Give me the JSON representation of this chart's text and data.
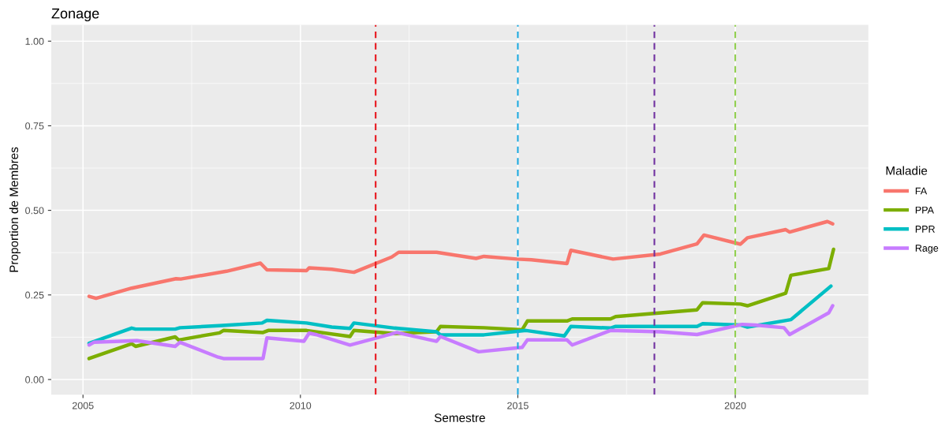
{
  "chart_data": {
    "type": "line",
    "title": "Zonage",
    "xlabel": "Semestre",
    "ylabel": "Proportion de Membres",
    "legend_title": "Maladie",
    "legend": "right",
    "grid": true,
    "line_style": "solid",
    "marker": "none",
    "xlim": [
      2004.27,
      2023.06
    ],
    "xticks": [
      2005,
      2010,
      2015,
      2020
    ],
    "ylim": [
      -0.045,
      1.048
    ],
    "yticks": [
      {
        "value": 0,
        "label": "0.00"
      },
      {
        "value": 0.25,
        "label": "0.25"
      },
      {
        "value": 0.5,
        "label": "0.50"
      },
      {
        "value": 0.75,
        "label": "0.75"
      },
      {
        "value": 1,
        "label": "1.00"
      }
    ],
    "series": [
      {
        "name": "FA",
        "color": "#f8766d",
        "x": [
          2005.14,
          2005.3,
          2006.12,
          2007.14,
          2007.25,
          2008.3,
          2009.08,
          2009.23,
          2010.14,
          2010.2,
          2010.72,
          2011.23,
          2012.1,
          2012.26,
          2013.13,
          2014.04,
          2014.22,
          2014.98,
          2015.31,
          2016.13,
          2016.22,
          2017.19,
          2018.28,
          2019.12,
          2019.28,
          2020.12,
          2020.28,
          2021.16,
          2021.25,
          2022.12,
          2022.24
        ],
        "values": [
          0.246,
          0.24,
          0.27,
          0.298,
          0.297,
          0.32,
          0.344,
          0.324,
          0.322,
          0.33,
          0.326,
          0.317,
          0.362,
          0.376,
          0.376,
          0.358,
          0.364,
          0.356,
          0.354,
          0.343,
          0.382,
          0.356,
          0.371,
          0.401,
          0.427,
          0.4,
          0.419,
          0.443,
          0.436,
          0.467,
          0.46
        ]
      },
      {
        "name": "PPA",
        "color": "#7cae00",
        "x": [
          2005.14,
          2006.12,
          2006.21,
          2007.12,
          2007.2,
          2008.14,
          2008.23,
          2009.14,
          2009.26,
          2010.14,
          2011.14,
          2011.23,
          2012.17,
          2013.13,
          2013.22,
          2014.22,
          2015.1,
          2015.22,
          2016.13,
          2016.25,
          2017.13,
          2017.25,
          2019.12,
          2019.25,
          2020.12,
          2020.28,
          2021.16,
          2021.28,
          2022.15,
          2022.26
        ],
        "values": [
          0.062,
          0.106,
          0.098,
          0.126,
          0.117,
          0.138,
          0.145,
          0.139,
          0.145,
          0.145,
          0.127,
          0.145,
          0.136,
          0.141,
          0.157,
          0.153,
          0.147,
          0.173,
          0.173,
          0.179,
          0.179,
          0.186,
          0.206,
          0.227,
          0.223,
          0.218,
          0.255,
          0.308,
          0.328,
          0.385
        ]
      },
      {
        "name": "PPR",
        "color": "#00bfc4",
        "x": [
          2005.14,
          2006.12,
          2006.21,
          2007.12,
          2007.23,
          2008.14,
          2009.12,
          2009.23,
          2010.14,
          2010.72,
          2011.14,
          2011.23,
          2012.17,
          2013.13,
          2013.22,
          2014.22,
          2015.19,
          2016.07,
          2016.22,
          2017.13,
          2017.25,
          2019.12,
          2019.25,
          2020.12,
          2020.28,
          2021.28,
          2022.2
        ],
        "values": [
          0.107,
          0.152,
          0.149,
          0.149,
          0.153,
          0.159,
          0.167,
          0.175,
          0.167,
          0.155,
          0.151,
          0.167,
          0.152,
          0.141,
          0.132,
          0.132,
          0.145,
          0.129,
          0.157,
          0.152,
          0.157,
          0.157,
          0.165,
          0.161,
          0.155,
          0.177,
          0.276
        ]
      },
      {
        "name": "Rage",
        "color": "#c77cff",
        "x": [
          2005.14,
          2005.25,
          2006.24,
          2007.12,
          2007.23,
          2008.11,
          2008.23,
          2009.14,
          2009.23,
          2010.08,
          2010.2,
          2010.35,
          2011.14,
          2012.22,
          2013.13,
          2013.22,
          2014.1,
          2015.1,
          2015.22,
          2016.13,
          2016.25,
          2017.13,
          2018.28,
          2019.12,
          2020.16,
          2020.46,
          2021.12,
          2021.25,
          2022.15,
          2022.24
        ],
        "values": [
          0.102,
          0.11,
          0.115,
          0.098,
          0.11,
          0.066,
          0.062,
          0.062,
          0.123,
          0.113,
          0.137,
          0.133,
          0.102,
          0.139,
          0.113,
          0.127,
          0.082,
          0.095,
          0.117,
          0.117,
          0.102,
          0.145,
          0.141,
          0.133,
          0.163,
          0.161,
          0.153,
          0.133,
          0.197,
          0.218
        ]
      }
    ],
    "ref_lines": [
      {
        "axis": "x",
        "value": 2011.73,
        "color": "#e8141b",
        "line_style": "dashed"
      },
      {
        "axis": "x",
        "value": 2015.0,
        "color": "#1ba9e0",
        "line_style": "dashed"
      },
      {
        "axis": "x",
        "value": 2018.14,
        "color": "#7030a0",
        "line_style": "dashed"
      },
      {
        "axis": "x",
        "value": 2020.0,
        "color": "#92d050",
        "line_style": "dashed"
      }
    ]
  }
}
